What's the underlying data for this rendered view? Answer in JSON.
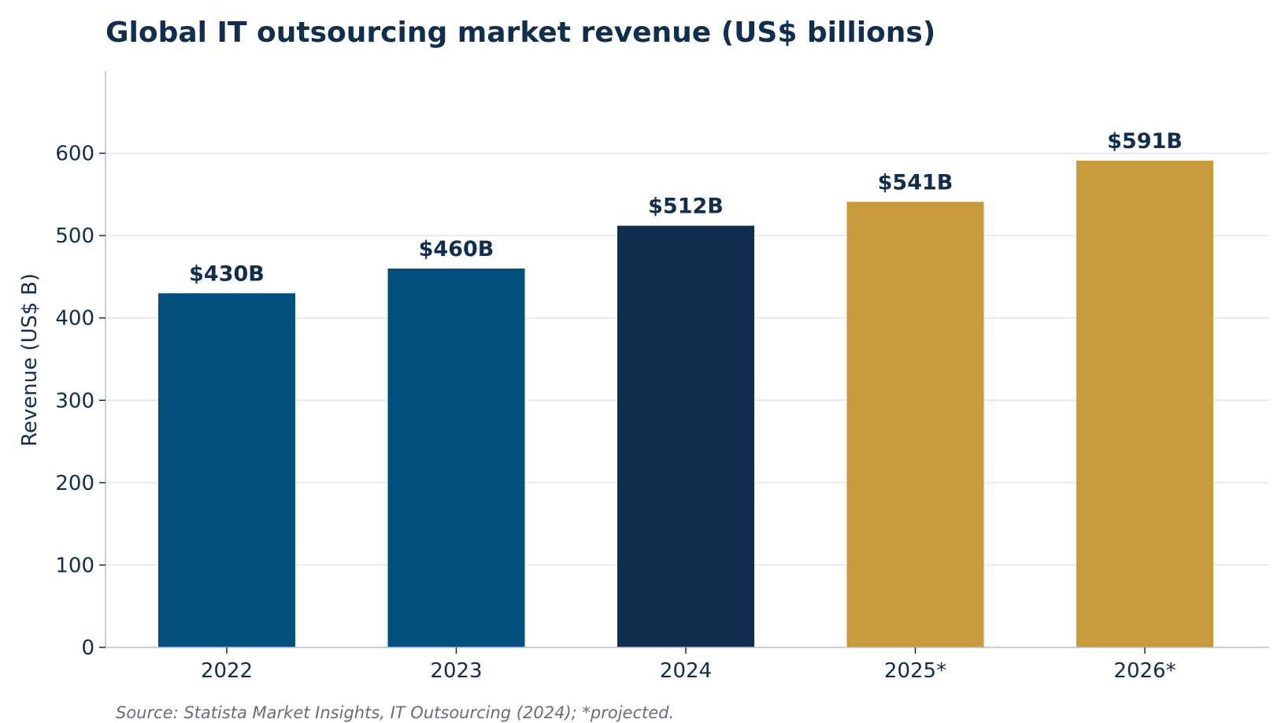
{
  "chart_data": {
    "type": "bar",
    "title": "Global IT outsourcing market revenue (US$ billions)",
    "ylabel": "Revenue (US$ B)",
    "xlabel": "",
    "categories": [
      "2022",
      "2023",
      "2024",
      "2025*",
      "2026*"
    ],
    "values": [
      430,
      460,
      512,
      541,
      591
    ],
    "value_labels": [
      "$430B",
      "$460B",
      "$512B",
      "$541B",
      "$591B"
    ],
    "bar_colors": [
      "#034F7D",
      "#034F7D",
      "#122E4E",
      "#C79B3C",
      "#C79B3C"
    ],
    "ylim": [
      0,
      700
    ],
    "yticks": [
      0,
      100,
      200,
      300,
      400,
      500,
      600
    ],
    "grid": true,
    "source": "Source: Statista Market Insights, IT Outsourcing (2024); *projected."
  },
  "colors": {
    "text": "#122E4E",
    "grid": "#E3E6EF",
    "axis": "#B9BED3",
    "source": "#6B6B7B"
  }
}
